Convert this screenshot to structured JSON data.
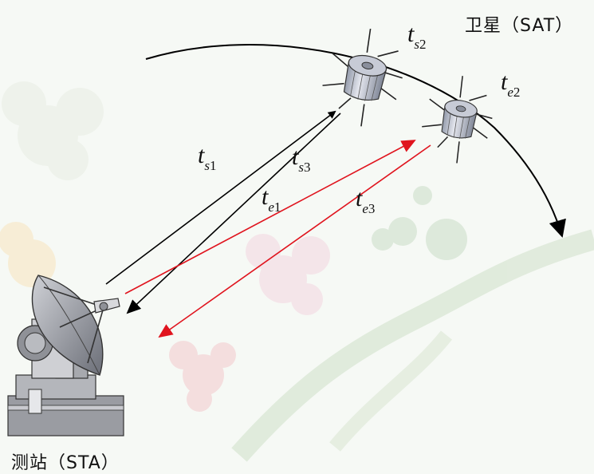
{
  "labels": {
    "satellite": "卫星（SAT）",
    "station": "测站（STA）"
  },
  "time_labels": [
    {
      "id": "ts1",
      "base": "t",
      "sub": "s",
      "num": "1"
    },
    {
      "id": "ts2",
      "base": "t",
      "sub": "s",
      "num": "2"
    },
    {
      "id": "ts3",
      "base": "t",
      "sub": "s",
      "num": "3"
    },
    {
      "id": "te1",
      "base": "t",
      "sub": "e",
      "num": "1"
    },
    {
      "id": "te2",
      "base": "t",
      "sub": "e",
      "num": "2"
    },
    {
      "id": "te3",
      "base": "t",
      "sub": "e",
      "num": "3"
    }
  ],
  "colors": {
    "signal_s": "#000000",
    "signal_e": "#e0141e",
    "orbit": "#000000"
  }
}
